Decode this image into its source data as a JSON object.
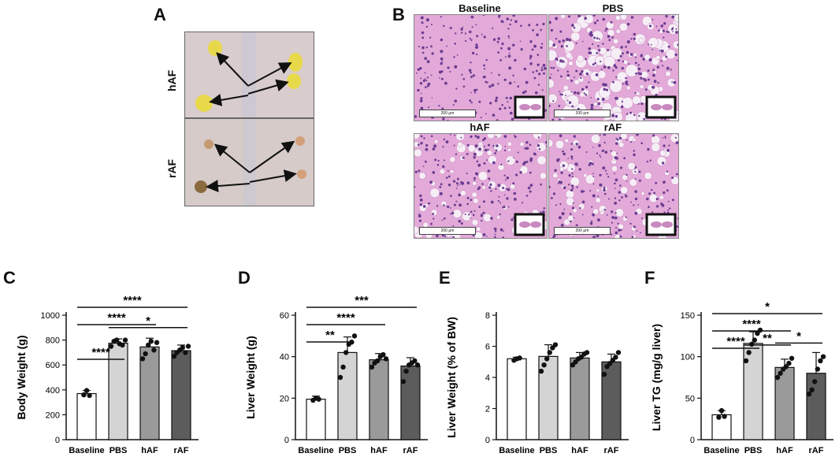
{
  "panels": {
    "A": "A",
    "B": "B",
    "C": "C",
    "D": "D",
    "E": "E",
    "F": "F"
  },
  "panel_a": {
    "labels": [
      "hAF",
      "rAF"
    ]
  },
  "panel_b": {
    "titles": [
      "Baseline",
      "PBS",
      "hAF",
      "rAF"
    ],
    "scale_text": "200 μm"
  },
  "colors": {
    "baseline": "#ffffff",
    "pbs": "#d4d4d4",
    "haf": "#9a9a9a",
    "raf": "#5c5c5c",
    "histo_bg": "#e3a9d8",
    "histo_dot": "#6a3d91"
  },
  "chart_data": [
    {
      "type": "bar",
      "panel": "C",
      "ylabel": "Body Weight (g)",
      "categories": [
        "Baseline",
        "PBS",
        "hAF",
        "rAF"
      ],
      "values": [
        370,
        775,
        745,
        715
      ],
      "errors": [
        25,
        35,
        70,
        45
      ],
      "points": [
        [
          360,
          395,
          355
        ],
        [
          750,
          790,
          800,
          770,
          760,
          800
        ],
        [
          650,
          690,
          760,
          790,
          720,
          780
        ],
        [
          670,
          700,
          720,
          740,
          700,
          750
        ]
      ],
      "ylim": [
        0,
        1000
      ],
      "yticks": [
        0,
        200,
        400,
        600,
        800,
        1000
      ],
      "significance": [
        {
          "from": 0,
          "to": 1,
          "label": "****"
        },
        {
          "from": 1,
          "to": 3,
          "label": "*"
        },
        {
          "from": 0,
          "to": 2,
          "label": "****"
        },
        {
          "from": 0,
          "to": 3,
          "label": "****"
        }
      ]
    },
    {
      "type": "bar",
      "panel": "D",
      "ylabel": "Liver Weight (g)",
      "categories": [
        "Baseline",
        "PBS",
        "hAF",
        "rAF"
      ],
      "values": [
        19.5,
        42,
        38.5,
        35.5
      ],
      "errors": [
        1.5,
        7.5,
        3,
        4
      ],
      "points": [
        [
          19,
          20,
          19.5
        ],
        [
          30,
          35,
          42,
          46,
          47,
          50
        ],
        [
          35,
          37,
          38,
          40,
          41,
          39
        ],
        [
          28,
          33,
          36,
          37,
          38,
          36
        ]
      ],
      "ylim": [
        0,
        60
      ],
      "yticks": [
        0,
        20,
        40,
        60
      ],
      "significance": [
        {
          "from": 0,
          "to": 1,
          "label": "**"
        },
        {
          "from": 0,
          "to": 2,
          "label": "****"
        },
        {
          "from": 0,
          "to": 3,
          "label": "***"
        }
      ]
    },
    {
      "type": "bar",
      "panel": "E",
      "ylabel": "Liver Weight (% of BW)",
      "categories": [
        "Baseline",
        "PBS",
        "hAF",
        "rAF"
      ],
      "values": [
        5.2,
        5.35,
        5.25,
        5.0
      ],
      "errors": [
        0.1,
        0.75,
        0.35,
        0.5
      ],
      "points": [
        [
          5.1,
          5.2,
          5.25
        ],
        [
          4.4,
          4.8,
          5.2,
          5.6,
          5.9,
          6.1
        ],
        [
          4.8,
          5.0,
          5.2,
          5.3,
          5.5,
          5.6
        ],
        [
          4.2,
          4.7,
          4.9,
          5.1,
          5.3,
          5.6
        ]
      ],
      "ylim": [
        0,
        8
      ],
      "yticks": [
        0,
        2,
        4,
        6,
        8
      ],
      "significance": []
    },
    {
      "type": "bar",
      "panel": "F",
      "ylabel": "Liver TG (mg/g liver)",
      "categories": [
        "Baseline",
        "PBS",
        "hAF",
        "rAF"
      ],
      "values": [
        30,
        116,
        87,
        80
      ],
      "errors": [
        5,
        14,
        10,
        25
      ],
      "points": [
        [
          27,
          35,
          28
        ],
        [
          95,
          105,
          115,
          120,
          128,
          132
        ],
        [
          75,
          80,
          85,
          88,
          92,
          98
        ],
        [
          55,
          60,
          70,
          85,
          95,
          100
        ]
      ],
      "ylim": [
        0,
        150
      ],
      "yticks": [
        0,
        50,
        100,
        150
      ],
      "significance": [
        {
          "from": 1,
          "to": 2,
          "label": "**"
        },
        {
          "from": 2,
          "to": 3,
          "label": "*"
        },
        {
          "from": 0,
          "to": 1,
          "label": "****"
        },
        {
          "from": 0,
          "to": 2,
          "label": "****"
        },
        {
          "from": 0,
          "to": 3,
          "label": "*"
        }
      ]
    }
  ]
}
